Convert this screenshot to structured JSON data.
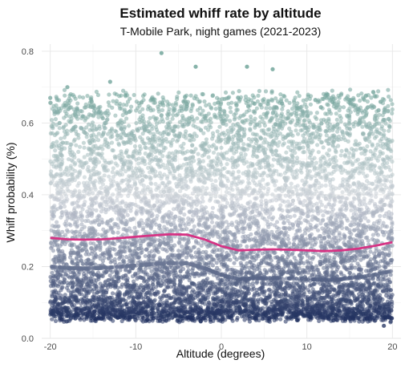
{
  "chart_data": {
    "type": "scatter",
    "title": "Estimated whiff rate by altitude",
    "subtitle": "T-Mobile Park, night games (2021-2023)",
    "xlabel": "Altitude (degrees)",
    "ylabel": "Whiff probability (%)",
    "xlim": [
      -21,
      21
    ],
    "ylim": [
      0,
      0.82
    ],
    "x_ticks": [
      -20,
      -10,
      0,
      10,
      20
    ],
    "x_tick_labels": [
      "-20",
      "-10",
      "0",
      "10",
      "20"
    ],
    "y_ticks": [
      0.0,
      0.2,
      0.4,
      0.6,
      0.8
    ],
    "y_tick_labels": [
      "0.0",
      "0.2",
      "0.4",
      "0.6",
      "0.8"
    ],
    "grid": true,
    "legend": "none",
    "point_count_approx": 9000,
    "point_color_scale": {
      "low": "#1f2f5e",
      "mid": "#c9cfd6",
      "high": "#5f9a8e",
      "low_value": 0.05,
      "mid_value": 0.4,
      "high_value": 0.75
    },
    "notable_points": [
      {
        "x": -7,
        "y": 0.795
      },
      {
        "x": -3,
        "y": 0.757
      },
      {
        "x": 3,
        "y": 0.757
      },
      {
        "x": 6,
        "y": 0.75
      },
      {
        "x": -13,
        "y": 0.715
      },
      {
        "x": -18,
        "y": 0.7
      },
      {
        "x": -20,
        "y": 0.67
      },
      {
        "x": 19,
        "y": 0.035
      }
    ],
    "trend": {
      "name": "smooth",
      "color": "#d63384",
      "x": [
        -20,
        -18,
        -16,
        -14,
        -12,
        -10,
        -8,
        -6,
        -4,
        -2,
        0,
        2,
        4,
        6,
        8,
        10,
        12,
        14,
        16,
        18,
        20
      ],
      "y": [
        0.28,
        0.276,
        0.275,
        0.276,
        0.279,
        0.283,
        0.287,
        0.29,
        0.289,
        0.276,
        0.257,
        0.245,
        0.247,
        0.248,
        0.247,
        0.245,
        0.243,
        0.245,
        0.25,
        0.258,
        0.268
      ]
    }
  }
}
